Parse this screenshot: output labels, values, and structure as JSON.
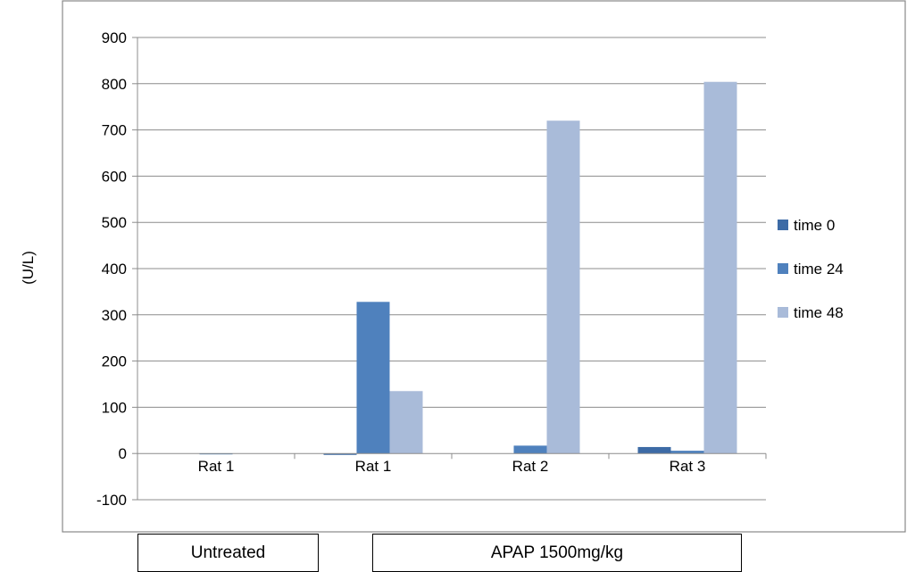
{
  "chart_data": {
    "type": "bar",
    "title": "",
    "xlabel": "",
    "ylabel": "(U/L)",
    "categories": [
      "Rat 1",
      "Rat 1",
      "Rat 2",
      "Rat 3"
    ],
    "series": [
      {
        "name": "time 0",
        "color": "#3d6ba6",
        "values": [
          0,
          -3,
          0,
          14
        ]
      },
      {
        "name": "time 24",
        "color": "#4f81bd",
        "values": [
          -1,
          328,
          17,
          6
        ]
      },
      {
        "name": "time 48",
        "color": "#a9bbd9",
        "values": [
          0,
          135,
          720,
          804
        ]
      }
    ],
    "ylim": [
      -100,
      900
    ],
    "yticks": [
      -100,
      0,
      100,
      200,
      300,
      400,
      500,
      600,
      700,
      800,
      900
    ],
    "grid": true,
    "legend_position": "right",
    "groups": [
      {
        "label": "Untreated"
      },
      {
        "label": "APAP 1500mg/kg"
      }
    ]
  }
}
